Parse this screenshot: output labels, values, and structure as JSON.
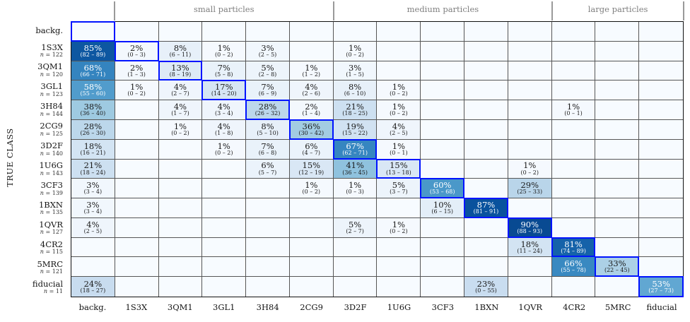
{
  "colors": {
    "diagonal_box": "#0013ff",
    "grid_line": "#565656",
    "outer_border": "#111111",
    "empty_cell": "#f7fbff",
    "group_header_text": "#7f7f7f",
    "label_text": "#141414",
    "cell_text_dark": "#1a1a1a",
    "cell_text_light": "#ffffff"
  },
  "chart_data": {
    "type": "heatmap",
    "title": "",
    "y_axis_label": "TRUE CLASS",
    "colormap": "Blues",
    "value_range": [
      0,
      100
    ],
    "columns": [
      "backg.",
      "1S3X",
      "3QM1",
      "3GL1",
      "3H84",
      "2CG9",
      "3D2F",
      "1U6G",
      "3CF3",
      "1BXN",
      "1QVR",
      "4CR2",
      "5MRC",
      "fiducial"
    ],
    "groups": [
      {
        "label": "small particles",
        "from": 1,
        "to": 5
      },
      {
        "label": "medium particles",
        "from": 6,
        "to": 10
      },
      {
        "label": "large particles",
        "from": 11,
        "to": 13
      }
    ],
    "rows": [
      {
        "label": "backg.",
        "n": "",
        "diag": 0,
        "cells": []
      },
      {
        "label": "1S3X",
        "n": "n = 122",
        "diag": 1,
        "cells": [
          {
            "c": 0,
            "v": 85,
            "pct": "85%",
            "ci": "(82 – 89)",
            "bg": "#0d57a1",
            "light": true
          },
          {
            "c": 1,
            "v": 2,
            "pct": "2%",
            "ci": "(0 – 3)",
            "bg": "#f3f8fd",
            "light": false
          },
          {
            "c": 2,
            "v": 8,
            "pct": "8%",
            "ci": "(6 – 11)",
            "bg": "#e7f0f9",
            "light": false
          },
          {
            "c": 3,
            "v": 1,
            "pct": "1%",
            "ci": "(0 – 2)",
            "bg": "#f5f9fe",
            "light": false
          },
          {
            "c": 4,
            "v": 3,
            "pct": "3%",
            "ci": "(2 – 5)",
            "bg": "#f1f7fd",
            "light": false
          },
          {
            "c": 6,
            "v": 1,
            "pct": "1%",
            "ci": "(0 – 2)",
            "bg": "#f5f9fe",
            "light": false
          }
        ]
      },
      {
        "label": "3QM1",
        "n": "n = 120",
        "diag": 2,
        "cells": [
          {
            "c": 0,
            "v": 68,
            "pct": "68%",
            "ci": "(66 – 71)",
            "bg": "#3484bf",
            "light": true
          },
          {
            "c": 1,
            "v": 2,
            "pct": "2%",
            "ci": "(1 – 3)",
            "bg": "#f3f8fd",
            "light": false
          },
          {
            "c": 2,
            "v": 13,
            "pct": "13%",
            "ci": "(8 – 19)",
            "bg": "#ddeaf6",
            "light": false
          },
          {
            "c": 3,
            "v": 7,
            "pct": "7%",
            "ci": "(5 – 8)",
            "bg": "#e9f2fa",
            "light": false
          },
          {
            "c": 4,
            "v": 5,
            "pct": "5%",
            "ci": "(2 – 8)",
            "bg": "#edf4fb",
            "light": false
          },
          {
            "c": 5,
            "v": 1,
            "pct": "1%",
            "ci": "(1 – 2)",
            "bg": "#f5f9fe",
            "light": false
          },
          {
            "c": 6,
            "v": 3,
            "pct": "3%",
            "ci": "(1 – 5)",
            "bg": "#f1f7fd",
            "light": false
          }
        ]
      },
      {
        "label": "3GL1",
        "n": "n = 123",
        "diag": 3,
        "cells": [
          {
            "c": 0,
            "v": 58,
            "pct": "58%",
            "ci": "(55 – 60)",
            "bg": "#519ccc",
            "light": true
          },
          {
            "c": 1,
            "v": 1,
            "pct": "1%",
            "ci": "(0 – 2)",
            "bg": "#f5f9fe",
            "light": false
          },
          {
            "c": 2,
            "v": 4,
            "pct": "4%",
            "ci": "(2 – 7)",
            "bg": "#eff5fc",
            "light": false
          },
          {
            "c": 3,
            "v": 17,
            "pct": "17%",
            "ci": "(14 – 20)",
            "bg": "#d5e5f4",
            "light": false
          },
          {
            "c": 4,
            "v": 7,
            "pct": "7%",
            "ci": "(6 – 9)",
            "bg": "#e9f2fa",
            "light": false
          },
          {
            "c": 5,
            "v": 4,
            "pct": "4%",
            "ci": "(2 – 6)",
            "bg": "#eff5fc",
            "light": false
          },
          {
            "c": 6,
            "v": 8,
            "pct": "8%",
            "ci": "(6 – 10)",
            "bg": "#e7f0f9",
            "light": false
          },
          {
            "c": 7,
            "v": 1,
            "pct": "1%",
            "ci": "(0 – 2)",
            "bg": "#f5f9fe",
            "light": false
          }
        ]
      },
      {
        "label": "3H84",
        "n": "n = 144",
        "diag": 4,
        "cells": [
          {
            "c": 0,
            "v": 38,
            "pct": "38%",
            "ci": "(36 – 40)",
            "bg": "#9ecae1",
            "light": false
          },
          {
            "c": 2,
            "v": 4,
            "pct": "4%",
            "ci": "(1 – 7)",
            "bg": "#eff5fc",
            "light": false
          },
          {
            "c": 3,
            "v": 4,
            "pct": "4%",
            "ci": "(3 – 4)",
            "bg": "#eff5fc",
            "light": false
          },
          {
            "c": 4,
            "v": 28,
            "pct": "28%",
            "ci": "(26 – 32)",
            "bg": "#bcd7eb",
            "light": false
          },
          {
            "c": 5,
            "v": 2,
            "pct": "2%",
            "ci": "(1 – 4)",
            "bg": "#f3f8fd",
            "light": false
          },
          {
            "c": 6,
            "v": 21,
            "pct": "21%",
            "ci": "(18 – 25)",
            "bg": "#cde0f1",
            "light": false
          },
          {
            "c": 7,
            "v": 1,
            "pct": "1%",
            "ci": "(0 – 2)",
            "bg": "#f5f9fe",
            "light": false
          },
          {
            "c": 11,
            "v": 1,
            "pct": "1%",
            "ci": "(0 – 1)",
            "bg": "#f5f9fe",
            "light": false
          }
        ]
      },
      {
        "label": "2CG9",
        "n": "n = 125",
        "diag": 5,
        "cells": [
          {
            "c": 0,
            "v": 28,
            "pct": "28%",
            "ci": "(26 – 30)",
            "bg": "#bcd7eb",
            "light": false
          },
          {
            "c": 2,
            "v": 1,
            "pct": "1%",
            "ci": "(0 – 2)",
            "bg": "#f5f9fe",
            "light": false
          },
          {
            "c": 3,
            "v": 4,
            "pct": "4%",
            "ci": "(1 – 8)",
            "bg": "#eff5fc",
            "light": false
          },
          {
            "c": 4,
            "v": 8,
            "pct": "8%",
            "ci": "(5 – 10)",
            "bg": "#e7f0f9",
            "light": false
          },
          {
            "c": 5,
            "v": 36,
            "pct": "36%",
            "ci": "(30 – 42)",
            "bg": "#a2cce2",
            "light": false
          },
          {
            "c": 6,
            "v": 19,
            "pct": "19%",
            "ci": "(15 – 22)",
            "bg": "#d1e2f2",
            "light": false
          },
          {
            "c": 7,
            "v": 4,
            "pct": "4%",
            "ci": "(2 – 5)",
            "bg": "#eff5fc",
            "light": false
          }
        ]
      },
      {
        "label": "3D2F",
        "n": "n = 140",
        "diag": 6,
        "cells": [
          {
            "c": 0,
            "v": 18,
            "pct": "18%",
            "ci": "(16 – 21)",
            "bg": "#d3e4f3",
            "light": false
          },
          {
            "c": 3,
            "v": 1,
            "pct": "1%",
            "ci": "(0 – 2)",
            "bg": "#f5f9fe",
            "light": false
          },
          {
            "c": 4,
            "v": 7,
            "pct": "7%",
            "ci": "(6 – 8)",
            "bg": "#e9f2fa",
            "light": false
          },
          {
            "c": 5,
            "v": 6,
            "pct": "6%",
            "ci": "(4 – 7)",
            "bg": "#ebf3fb",
            "light": false
          },
          {
            "c": 6,
            "v": 67,
            "pct": "67%",
            "ci": "(62 – 71)",
            "bg": "#3686c0",
            "light": true
          },
          {
            "c": 7,
            "v": 1,
            "pct": "1%",
            "ci": "(0 – 1)",
            "bg": "#f5f9fe",
            "light": false
          }
        ]
      },
      {
        "label": "1U6G",
        "n": "n = 143",
        "diag": 7,
        "cells": [
          {
            "c": 0,
            "v": 21,
            "pct": "21%",
            "ci": "(18 – 24)",
            "bg": "#cde0f1",
            "light": false
          },
          {
            "c": 4,
            "v": 6,
            "pct": "6%",
            "ci": "(5 – 7)",
            "bg": "#ebf3fb",
            "light": false
          },
          {
            "c": 5,
            "v": 15,
            "pct": "15%",
            "ci": "(12 – 19)",
            "bg": "#d9e7f5",
            "light": false
          },
          {
            "c": 6,
            "v": 41,
            "pct": "41%",
            "ci": "(36 – 45)",
            "bg": "#8fc2de",
            "light": false
          },
          {
            "c": 7,
            "v": 15,
            "pct": "15%",
            "ci": "(13 – 18)",
            "bg": "#d9e7f5",
            "light": false
          },
          {
            "c": 10,
            "v": 1,
            "pct": "1%",
            "ci": "(0 – 2)",
            "bg": "#f5f9fe",
            "light": false
          }
        ]
      },
      {
        "label": "3CF3",
        "n": "n = 139",
        "diag": 8,
        "cells": [
          {
            "c": 0,
            "v": 3,
            "pct": "3%",
            "ci": "(3 – 4)",
            "bg": "#f1f7fd",
            "light": false
          },
          {
            "c": 5,
            "v": 1,
            "pct": "1%",
            "ci": "(0 – 2)",
            "bg": "#f5f9fe",
            "light": false
          },
          {
            "c": 6,
            "v": 1,
            "pct": "1%",
            "ci": "(0 – 3)",
            "bg": "#f5f9fe",
            "light": false
          },
          {
            "c": 7,
            "v": 5,
            "pct": "5%",
            "ci": "(3 – 7)",
            "bg": "#edf4fb",
            "light": false
          },
          {
            "c": 8,
            "v": 60,
            "pct": "60%",
            "ci": "(53 – 68)",
            "bg": "#4a98c9",
            "light": true
          },
          {
            "c": 10,
            "v": 29,
            "pct": "29%",
            "ci": "(25 – 33)",
            "bg": "#b9d5ea",
            "light": false
          }
        ]
      },
      {
        "label": "1BXN",
        "n": "n = 135",
        "diag": 9,
        "cells": [
          {
            "c": 0,
            "v": 3,
            "pct": "3%",
            "ci": "(3 – 4)",
            "bg": "#f1f7fd",
            "light": false
          },
          {
            "c": 8,
            "v": 10,
            "pct": "10%",
            "ci": "(6 – 15)",
            "bg": "#e3eef8",
            "light": false
          },
          {
            "c": 9,
            "v": 87,
            "pct": "87%",
            "ci": "(81 – 91)",
            "bg": "#09529d",
            "light": true
          }
        ]
      },
      {
        "label": "1QVR",
        "n": "n = 127",
        "diag": 10,
        "cells": [
          {
            "c": 0,
            "v": 4,
            "pct": "4%",
            "ci": "(2 – 5)",
            "bg": "#eff5fc",
            "light": false
          },
          {
            "c": 6,
            "v": 5,
            "pct": "5%",
            "ci": "(2 – 7)",
            "bg": "#edf4fb",
            "light": false
          },
          {
            "c": 7,
            "v": 1,
            "pct": "1%",
            "ci": "(0 – 2)",
            "bg": "#f5f9fe",
            "light": false
          },
          {
            "c": 10,
            "v": 90,
            "pct": "90%",
            "ci": "(88 – 93)",
            "bg": "#084a92",
            "light": true
          }
        ]
      },
      {
        "label": "4CR2",
        "n": "n = 115",
        "diag": 11,
        "cells": [
          {
            "c": 10,
            "v": 18,
            "pct": "18%",
            "ci": "(11 – 24)",
            "bg": "#d3e4f3",
            "light": false
          },
          {
            "c": 11,
            "v": 81,
            "pct": "81%",
            "ci": "(74 – 89)",
            "bg": "#1562a9",
            "light": true
          }
        ]
      },
      {
        "label": "5MRC",
        "n": "n = 121",
        "diag": 12,
        "cells": [
          {
            "c": 11,
            "v": 66,
            "pct": "66%",
            "ci": "(55 – 78)",
            "bg": "#3989c1",
            "light": true
          },
          {
            "c": 12,
            "v": 33,
            "pct": "33%",
            "ci": "(22 – 45)",
            "bg": "#acd0e6",
            "light": false
          }
        ]
      },
      {
        "label": "fiducial",
        "n": "n = 11",
        "diag": 13,
        "cells": [
          {
            "c": 0,
            "v": 24,
            "pct": "24%",
            "ci": "(18 – 27)",
            "bg": "#c8dcef",
            "light": false
          },
          {
            "c": 9,
            "v": 23,
            "pct": "23%",
            "ci": "(0 – 55)",
            "bg": "#c9ddf0",
            "light": false
          },
          {
            "c": 13,
            "v": 53,
            "pct": "53%",
            "ci": "(27 – 73)",
            "bg": "#61a7d2",
            "light": true
          }
        ]
      }
    ]
  }
}
